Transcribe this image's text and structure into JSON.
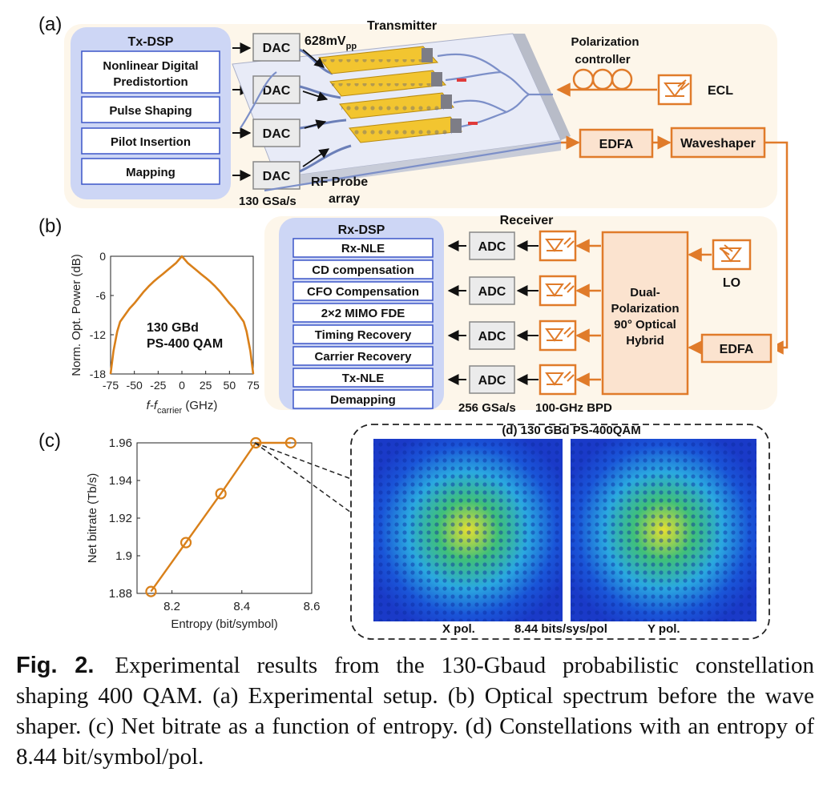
{
  "panel_labels": {
    "a": "(a)",
    "b": "(b)",
    "c": "(c)"
  },
  "tx": {
    "dsp_title": "Tx-DSP",
    "dsp_blocks": [
      "Nonlinear Digital",
      "Predistortion",
      "Pulse Shaping",
      "Pilot Insertion",
      "Mapping"
    ],
    "dac_label": "DAC",
    "dac_rate": "130 GSa/s",
    "transmitter_title": "Transmitter",
    "vpp_value": "628mV",
    "vpp_sub": "pp",
    "rf_probe_line1": "RF Probe",
    "rf_probe_line2": "array",
    "pol_ctrl_line1": "Polarization",
    "pol_ctrl_line2": "controller",
    "ecl_label": "ECL",
    "edfa_label": "EDFA",
    "waveshaper_label": "Waveshaper"
  },
  "rx": {
    "dsp_title": "Rx-DSP",
    "dsp_blocks": [
      "Rx-NLE",
      "CD compensation",
      "CFO Compensation",
      "2×2 MIMO FDE",
      "Timing Recovery",
      "Carrier Recovery",
      "Tx-NLE",
      "Demapping"
    ],
    "receiver_title": "Receiver",
    "adc_label": "ADC",
    "adc_rate": "256 GSa/s",
    "bpd_label": "100-GHz BPD",
    "hybrid_lines": [
      "Dual-",
      "Polarization",
      "90° Optical",
      "Hybrid"
    ],
    "lo_label": "LO",
    "edfa_label": "EDFA"
  },
  "spectrum": {
    "chart_data": {
      "type": "line",
      "xlabel_main": "f-f",
      "xlabel_sub": "carrier",
      "xlabel_unit": " (GHz)",
      "ylabel": "Norm. Opt. Power (dB)",
      "xlim": [
        -75,
        75
      ],
      "ylim": [
        -18,
        0
      ],
      "xticks": [
        -75,
        -50,
        -25,
        0,
        25,
        50,
        75
      ],
      "yticks": [
        0,
        -6,
        -12,
        -18
      ],
      "annotation_lines": [
        "130 GBd",
        "PS-400 QAM"
      ],
      "color": "#d9801a",
      "x": [
        -75,
        -72,
        -68,
        -65,
        -60,
        -55,
        -50,
        -45,
        -40,
        -35,
        -30,
        -25,
        -20,
        -15,
        -10,
        -6,
        -3,
        0,
        3,
        6,
        10,
        15,
        20,
        25,
        30,
        35,
        40,
        45,
        50,
        55,
        60,
        65,
        68,
        72,
        75
      ],
      "y": [
        -18,
        -14.5,
        -11.5,
        -10,
        -9,
        -8,
        -7.2,
        -6.3,
        -5.4,
        -4.6,
        -3.9,
        -3.3,
        -2.7,
        -2.1,
        -1.5,
        -1.0,
        -0.5,
        0,
        -0.5,
        -1.0,
        -1.5,
        -2.1,
        -2.7,
        -3.3,
        -3.9,
        -4.6,
        -5.4,
        -6.3,
        -7.2,
        -8,
        -9,
        -10,
        -11.5,
        -14.5,
        -18
      ]
    }
  },
  "bitrate": {
    "chart_data": {
      "type": "line",
      "xlabel": "Entropy (bit/symbol)",
      "ylabel": "Net bitrate (Tb/s)",
      "xlim": [
        8.1,
        8.6
      ],
      "ylim": [
        1.88,
        1.96
      ],
      "xticks": [
        8.2,
        8.4,
        8.6
      ],
      "yticks": [
        1.88,
        1.9,
        1.92,
        1.94,
        1.96
      ],
      "color": "#d9801a",
      "x": [
        8.14,
        8.24,
        8.34,
        8.44,
        8.54
      ],
      "y": [
        1.881,
        1.907,
        1.933,
        1.96,
        1.96
      ]
    }
  },
  "constellation": {
    "title": "(d) 130 GBd PS-400QAM",
    "x_label": "X pol.",
    "mid_label": "8.44 bits/sys/pol",
    "y_label": "Y pol."
  },
  "caption": {
    "lead": "Fig. 2.",
    "text": "Experimental results from the 130-Gbaud probabilistic constellation shaping 400 QAM. (a) Experimental setup. (b) Optical spectrum before the wave shaper. (c) Net bitrate as a function of entropy. (d) Constellations with an entropy of 8.44 bit/symbol/pol."
  }
}
